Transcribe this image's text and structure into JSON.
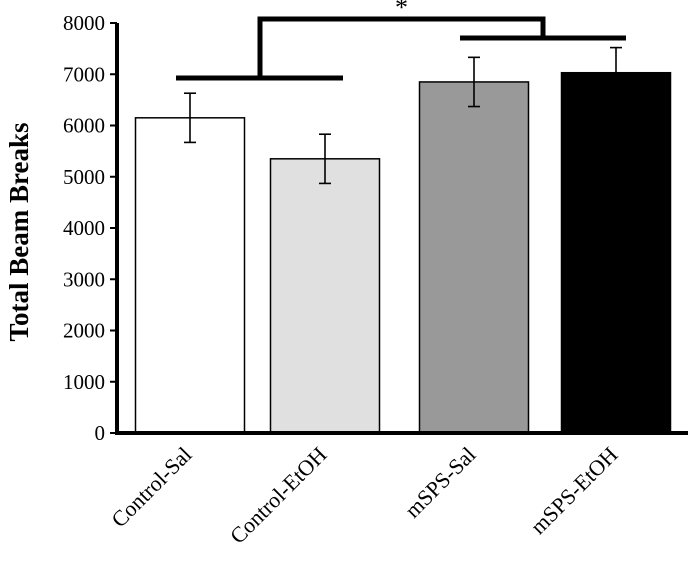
{
  "chart_data": {
    "type": "bar",
    "title": "",
    "xlabel": "",
    "ylabel": "Total Beam Breaks",
    "ylim": [
      0,
      8000
    ],
    "yticks": [
      0,
      1000,
      2000,
      3000,
      4000,
      5000,
      6000,
      7000,
      8000
    ],
    "categories": [
      "Control-Sal",
      "Control-EtOH",
      "mSPS-Sal",
      "mSPS-EtOH"
    ],
    "values": [
      6150,
      5350,
      6850,
      7030
    ],
    "errors": [
      480,
      480,
      480,
      490
    ],
    "bar_colors": [
      "#ffffff",
      "#e0e0e0",
      "#999999",
      "#000000"
    ],
    "grid": false,
    "legend": "none",
    "annotations": [
      {
        "type": "significance",
        "label": "*",
        "between_groups": [
          [
            "Control-Sal",
            "Control-EtOH"
          ],
          [
            "mSPS-Sal",
            "mSPS-EtOH"
          ]
        ]
      }
    ]
  }
}
